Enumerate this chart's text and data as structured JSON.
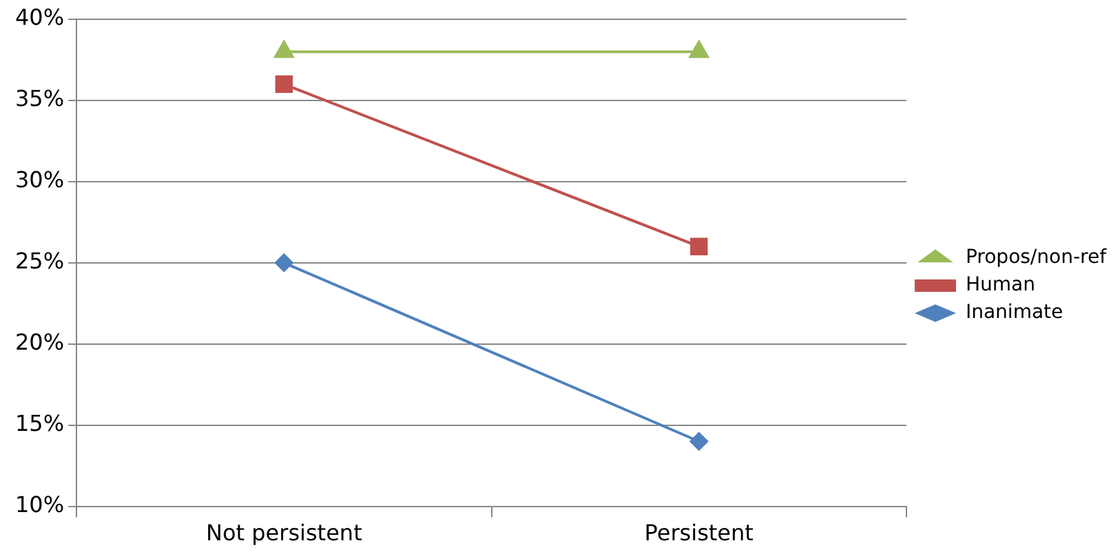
{
  "chart_data": {
    "type": "line",
    "categories": [
      "Not persistent",
      "Persistent"
    ],
    "series": [
      {
        "name": "Propos/non-ref",
        "color": "#9bbb59",
        "values": [
          38,
          38
        ],
        "marker": "triangle"
      },
      {
        "name": "Human",
        "color": "#c0504d",
        "values": [
          36,
          26
        ],
        "marker": "square"
      },
      {
        "name": "Inanimate",
        "color": "#4f81bd",
        "values": [
          25,
          14
        ],
        "marker": "diamond"
      }
    ],
    "ylim": [
      10,
      40
    ],
    "yticks": [
      {
        "value": 10,
        "label": "10%"
      },
      {
        "value": 15,
        "label": "15%"
      },
      {
        "value": 20,
        "label": "20%"
      },
      {
        "value": 25,
        "label": "25%"
      },
      {
        "value": 30,
        "label": "30%"
      },
      {
        "value": 35,
        "label": "35%"
      },
      {
        "value": 40,
        "label": "40%"
      }
    ],
    "grid": "y",
    "legend": "right",
    "line_style": "solid"
  }
}
